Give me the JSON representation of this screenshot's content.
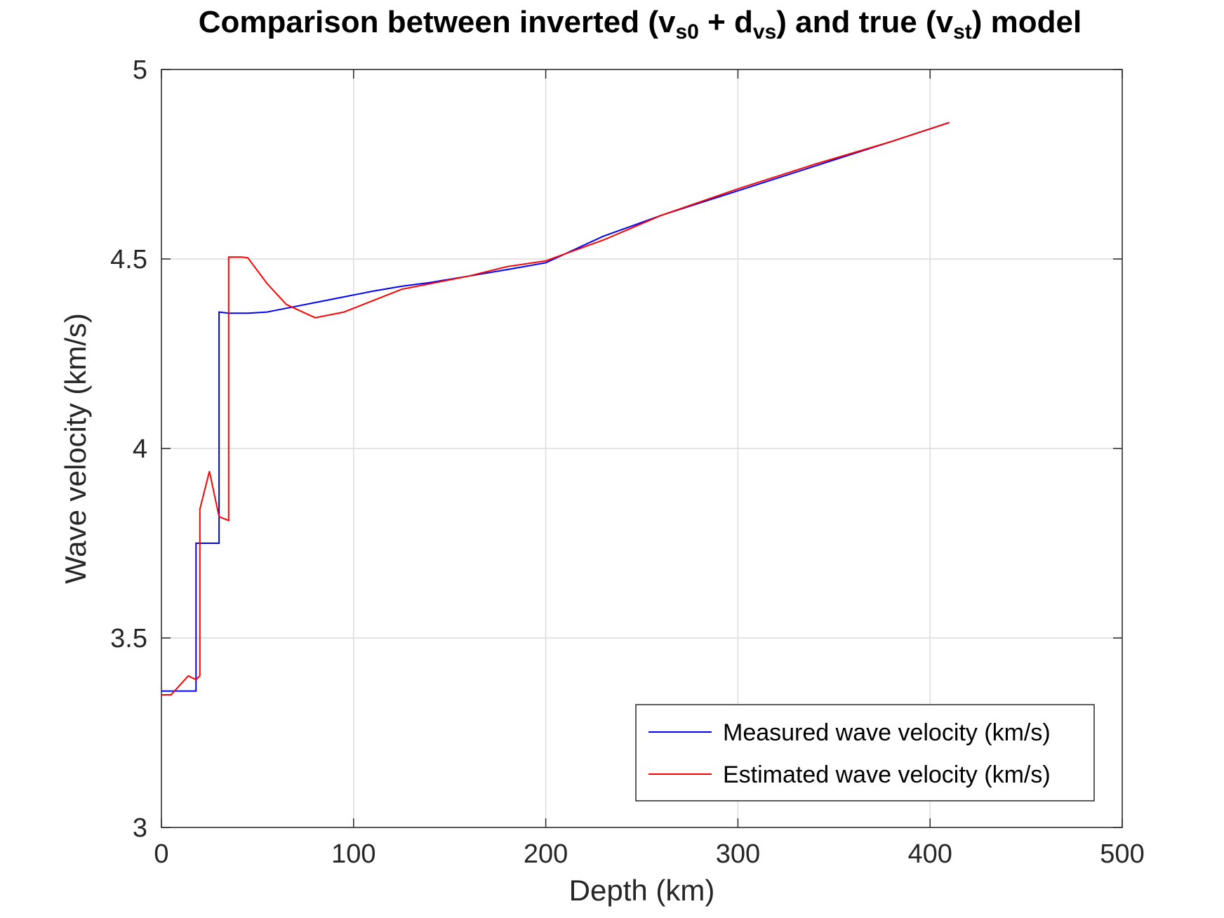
{
  "chart_data": {
    "type": "line",
    "title": {
      "parts": [
        {
          "text": "Comparison between inverted (v"
        },
        {
          "text": "s0",
          "sub": true
        },
        {
          "text": " + d"
        },
        {
          "text": "vs",
          "sub": true
        },
        {
          "text": ") and true (v"
        },
        {
          "text": "st",
          "sub": true
        },
        {
          "text": ") model"
        }
      ]
    },
    "xlabel": "Depth (km)",
    "ylabel": "Wave velocity (km/s)",
    "xlim": [
      0,
      500
    ],
    "ylim": [
      3,
      5
    ],
    "xticks": [
      0,
      100,
      200,
      300,
      400,
      500
    ],
    "yticks": [
      3,
      3.5,
      4,
      4.5,
      5
    ],
    "xtick_labels": [
      "0",
      "100",
      "200",
      "300",
      "400",
      "500"
    ],
    "ytick_labels": [
      "3",
      "3.5",
      "4",
      "4.5",
      "5"
    ],
    "grid": true,
    "legend_position": "bottom-right",
    "series": [
      {
        "name": "Measured wave velocity (km/s)",
        "color": "#0000ff",
        "x": [
          0,
          18,
          18,
          30,
          30,
          35,
          45,
          55,
          65,
          80,
          95,
          110,
          125,
          140,
          160,
          180,
          200,
          230,
          260,
          300,
          340,
          380,
          410
        ],
        "y": [
          3.36,
          3.36,
          3.75,
          3.75,
          4.36,
          4.357,
          4.357,
          4.36,
          4.37,
          4.385,
          4.4,
          4.415,
          4.428,
          4.438,
          4.455,
          4.472,
          4.49,
          4.56,
          4.615,
          4.68,
          4.745,
          4.81,
          4.86
        ]
      },
      {
        "name": "Estimated wave velocity (km/s)",
        "color": "#ff0000",
        "x": [
          0,
          5,
          14,
          18,
          20,
          20,
          25,
          30,
          35,
          35,
          38,
          42,
          45,
          55,
          65,
          80,
          95,
          110,
          125,
          140,
          160,
          180,
          200,
          230,
          260,
          300,
          340,
          380,
          410
        ],
        "y": [
          3.35,
          3.35,
          3.4,
          3.39,
          3.4,
          3.84,
          3.94,
          3.82,
          3.81,
          4.505,
          4.505,
          4.505,
          4.503,
          4.435,
          4.38,
          4.345,
          4.36,
          4.39,
          4.42,
          4.435,
          4.455,
          4.48,
          4.495,
          4.55,
          4.615,
          4.685,
          4.75,
          4.81,
          4.86
        ]
      }
    ]
  }
}
